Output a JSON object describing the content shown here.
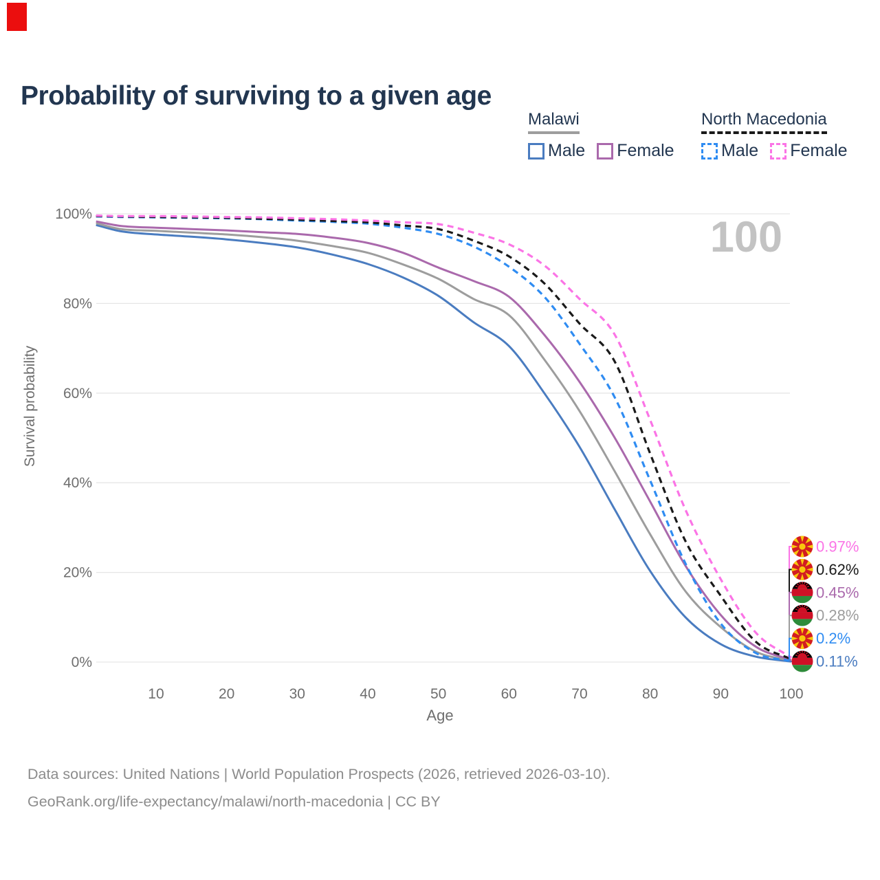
{
  "red_marker": {
    "color": "#eb0e0e"
  },
  "title": "Probability of surviving to a given age",
  "legend": {
    "groups": [
      {
        "label": "Malawi",
        "underline_style": "solid",
        "underline_color": "#9d9d9d",
        "items": [
          {
            "label": "Male",
            "color": "#4a7cc0",
            "dash": false
          },
          {
            "label": "Female",
            "color": "#aa69ac",
            "dash": false
          }
        ]
      },
      {
        "label": "North Macedonia",
        "underline_style": "dashed",
        "underline_color": "#1a1a1a",
        "items": [
          {
            "label": "Male",
            "color": "#2f8cf2",
            "dash": true
          },
          {
            "label": "Female",
            "color": "#fb74e6",
            "dash": true
          }
        ]
      }
    ]
  },
  "chart_data": {
    "type": "line",
    "title": "Probability of surviving to a given age",
    "xlabel": "Age",
    "ylabel": "Survival probability",
    "xlim": [
      1.5,
      100
    ],
    "ylim": [
      0,
      100
    ],
    "xticks": [
      10,
      20,
      30,
      40,
      50,
      60,
      70,
      80,
      90,
      100
    ],
    "yticks": [
      0,
      20,
      40,
      60,
      80,
      100
    ],
    "ytick_suffix": "%",
    "grid": "horizontal",
    "grid_color": "#e6e6e6",
    "watermark": "100",
    "watermark_color": "#c3c3c3",
    "axis_text_color": "#6e6e6e",
    "ages": [
      1.5,
      5,
      10,
      15,
      20,
      25,
      30,
      35,
      40,
      45,
      50,
      55,
      60,
      65,
      70,
      75,
      80,
      85,
      90,
      95,
      100
    ],
    "series": [
      {
        "id": "malawi-male",
        "flag": "malawi",
        "color": "#4a7cc0",
        "dash": false,
        "end_label": "0.11%",
        "values": [
          97.5,
          96.1,
          95.4,
          94.9,
          94.3,
          93.5,
          92.5,
          90.9,
          88.8,
          85.8,
          81.7,
          75.8,
          70.5,
          60.0,
          48.0,
          34.0,
          20.3,
          10.0,
          4.0,
          1.2,
          0.11
        ]
      },
      {
        "id": "malawi-all",
        "flag": "malawi",
        "color": "#9d9d9d",
        "dash": false,
        "end_label": "0.28%",
        "values": [
          97.9,
          96.6,
          96.2,
          95.8,
          95.4,
          94.8,
          94.0,
          92.8,
          91.3,
          88.7,
          85.5,
          81.0,
          77.4,
          67.5,
          56.0,
          42.5,
          28.5,
          15.8,
          7.8,
          2.3,
          0.28
        ]
      },
      {
        "id": "malawi-female",
        "flag": "malawi",
        "color": "#aa69ac",
        "dash": false,
        "end_label": "0.45%",
        "values": [
          98.3,
          97.3,
          96.9,
          96.6,
          96.3,
          95.9,
          95.5,
          94.7,
          93.5,
          91.3,
          88.0,
          85.0,
          81.5,
          73.0,
          62.5,
          50.0,
          35.8,
          21.5,
          10.5,
          3.4,
          0.45
        ]
      },
      {
        "id": "north-macedonia-male",
        "flag": "north-macedonia",
        "color": "#2f8cf2",
        "dash": true,
        "end_label": "0.2%",
        "values": [
          99.4,
          99.3,
          99.2,
          99.1,
          99.0,
          98.8,
          98.5,
          98.2,
          97.8,
          96.9,
          95.5,
          92.7,
          88.2,
          81.5,
          71.0,
          59.0,
          40.5,
          22.0,
          8.6,
          2.0,
          0.2
        ]
      },
      {
        "id": "north-macedonia-all",
        "flag": "north-macedonia",
        "color": "#1a1a1a",
        "dash": true,
        "end_label": "0.62%",
        "values": [
          99.5,
          99.4,
          99.3,
          99.2,
          99.1,
          98.9,
          98.7,
          98.4,
          98.1,
          97.4,
          96.6,
          94.0,
          90.5,
          84.5,
          75.5,
          67.0,
          46.5,
          27.0,
          14.8,
          4.5,
          0.62
        ]
      },
      {
        "id": "north-macedonia-female",
        "flag": "north-macedonia",
        "color": "#fb74e6",
        "dash": true,
        "end_label": "0.97%",
        "values": [
          99.6,
          99.5,
          99.5,
          99.4,
          99.3,
          99.2,
          99.0,
          98.8,
          98.5,
          98.1,
          97.7,
          95.8,
          93.2,
          88.5,
          81.0,
          73.0,
          54.0,
          34.0,
          18.5,
          6.5,
          0.97
        ]
      }
    ]
  },
  "footer": {
    "line1": "Data sources: United Nations | World Population Prospects (2026, retrieved 2026-03-10).",
    "line2": "GeoRank.org/life-expectancy/malawi/north-macedonia | CC BY"
  }
}
